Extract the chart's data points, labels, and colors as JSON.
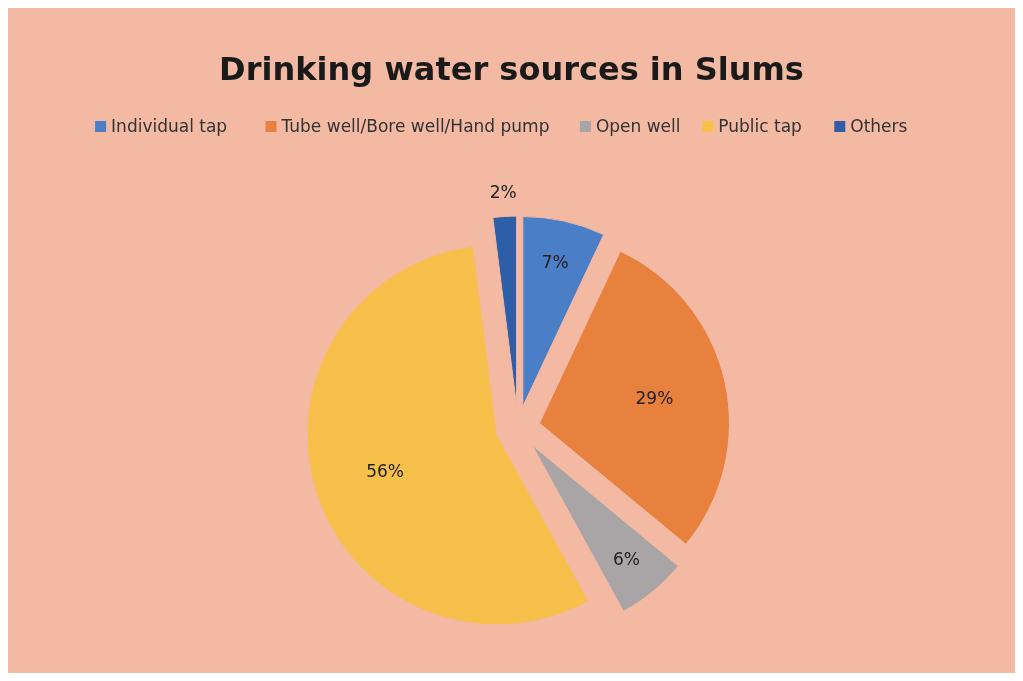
{
  "chart_data": {
    "type": "pie",
    "title": "Drinking water sources in Slums",
    "categories": [
      "Individual tap",
      "Tube well/Bore well/Hand pump",
      "Open well",
      "Public tap",
      "Others"
    ],
    "values": [
      7,
      29,
      6,
      56,
      2
    ],
    "colors": [
      "#4a7fc8",
      "#e8803e",
      "#a9a5a6",
      "#f6c04a",
      "#2f5ea8"
    ],
    "value_labels": [
      "7%",
      "29%",
      "6%",
      "56%",
      "2%"
    ],
    "legend": "top"
  }
}
